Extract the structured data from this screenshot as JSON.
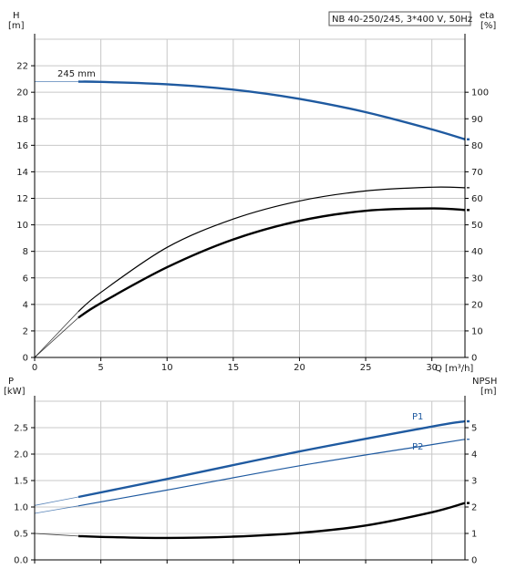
{
  "chart_data": [
    {
      "type": "line",
      "title": "NB 40-250/245, 3*400 V, 50Hz",
      "xlabel": "Q [m³/h]",
      "ylabel_left": [
        "H",
        "[m]"
      ],
      "ylabel_right": [
        "eta",
        "[%]"
      ],
      "xlim": [
        0,
        32.5
      ],
      "ylim_left": [
        0,
        24
      ],
      "ylim_right": [
        0,
        120
      ],
      "x_ticks": [
        0,
        5,
        10,
        15,
        20,
        25,
        30
      ],
      "y_ticks_left": [
        0,
        2,
        4,
        6,
        8,
        10,
        12,
        14,
        16,
        18,
        20,
        22
      ],
      "y_ticks_right": [
        0,
        10,
        20,
        30,
        40,
        50,
        60,
        70,
        80,
        90,
        100
      ],
      "grid": true,
      "series": [
        {
          "name": "245 mm",
          "axis": "left",
          "color": "#1f5aa0",
          "points": [
            [
              0,
              20.8
            ],
            [
              3.3,
              20.8
            ],
            [
              5,
              20.78
            ],
            [
              10,
              20.6
            ],
            [
              15,
              20.2
            ],
            [
              20,
              19.5
            ],
            [
              25,
              18.5
            ],
            [
              30,
              17.2
            ],
            [
              32.5,
              16.45
            ]
          ]
        },
        {
          "axis": "right",
          "color": "#000000",
          "points": [
            [
              0,
              0
            ],
            [
              3.3,
              17.3
            ],
            [
              5,
              24.5
            ],
            [
              10,
              41.5
            ],
            [
              15,
              52.2
            ],
            [
              20,
              59.0
            ],
            [
              25,
              62.8
            ],
            [
              30,
              64.2
            ],
            [
              32.5,
              64.0
            ]
          ]
        },
        {
          "axis": "right",
          "color": "#000000",
          "points": [
            [
              0,
              0
            ],
            [
              3.3,
              15.0
            ],
            [
              5,
              20.5
            ],
            [
              10,
              34.0
            ],
            [
              15,
              44.5
            ],
            [
              20,
              51.5
            ],
            [
              25,
              55.3
            ],
            [
              30,
              56.2
            ],
            [
              32.5,
              55.6
            ]
          ]
        }
      ]
    },
    {
      "type": "line",
      "xlim": [
        0,
        32.5
      ],
      "ylabel_left": [
        "P",
        "[kW]"
      ],
      "ylabel_right": [
        "NPSH",
        "[m]"
      ],
      "ylim_left": [
        0,
        3.0
      ],
      "ylim_right": [
        0,
        6
      ],
      "y_ticks_left": [
        0.0,
        0.5,
        1.0,
        1.5,
        2.0,
        2.5
      ],
      "y_ticks_left_labels": [
        "0.0",
        "0.5",
        "1.0",
        "1.5",
        "2.0",
        "2.5"
      ],
      "y_ticks_right": [
        0,
        1,
        2,
        3,
        4,
        5
      ],
      "grid": true,
      "series": [
        {
          "name": "P1",
          "axis": "left",
          "color": "#1f5aa0",
          "points": [
            [
              0,
              1.03
            ],
            [
              3.3,
              1.19
            ],
            [
              10,
              1.53
            ],
            [
              20,
              2.05
            ],
            [
              30,
              2.52
            ],
            [
              32.5,
              2.62
            ]
          ]
        },
        {
          "name": "P2",
          "axis": "left",
          "color": "#1f5aa0",
          "points": [
            [
              0,
              0.88
            ],
            [
              3.3,
              1.02
            ],
            [
              10,
              1.32
            ],
            [
              20,
              1.78
            ],
            [
              30,
              2.18
            ],
            [
              32.5,
              2.28
            ]
          ]
        },
        {
          "axis": "right",
          "color": "#000000",
          "points": [
            [
              0,
              1.0
            ],
            [
              3.3,
              0.9
            ],
            [
              5,
              0.87
            ],
            [
              10,
              0.83
            ],
            [
              15,
              0.88
            ],
            [
              20,
              1.02
            ],
            [
              25,
              1.3
            ],
            [
              30,
              1.8
            ],
            [
              32.5,
              2.15
            ]
          ]
        }
      ]
    }
  ]
}
